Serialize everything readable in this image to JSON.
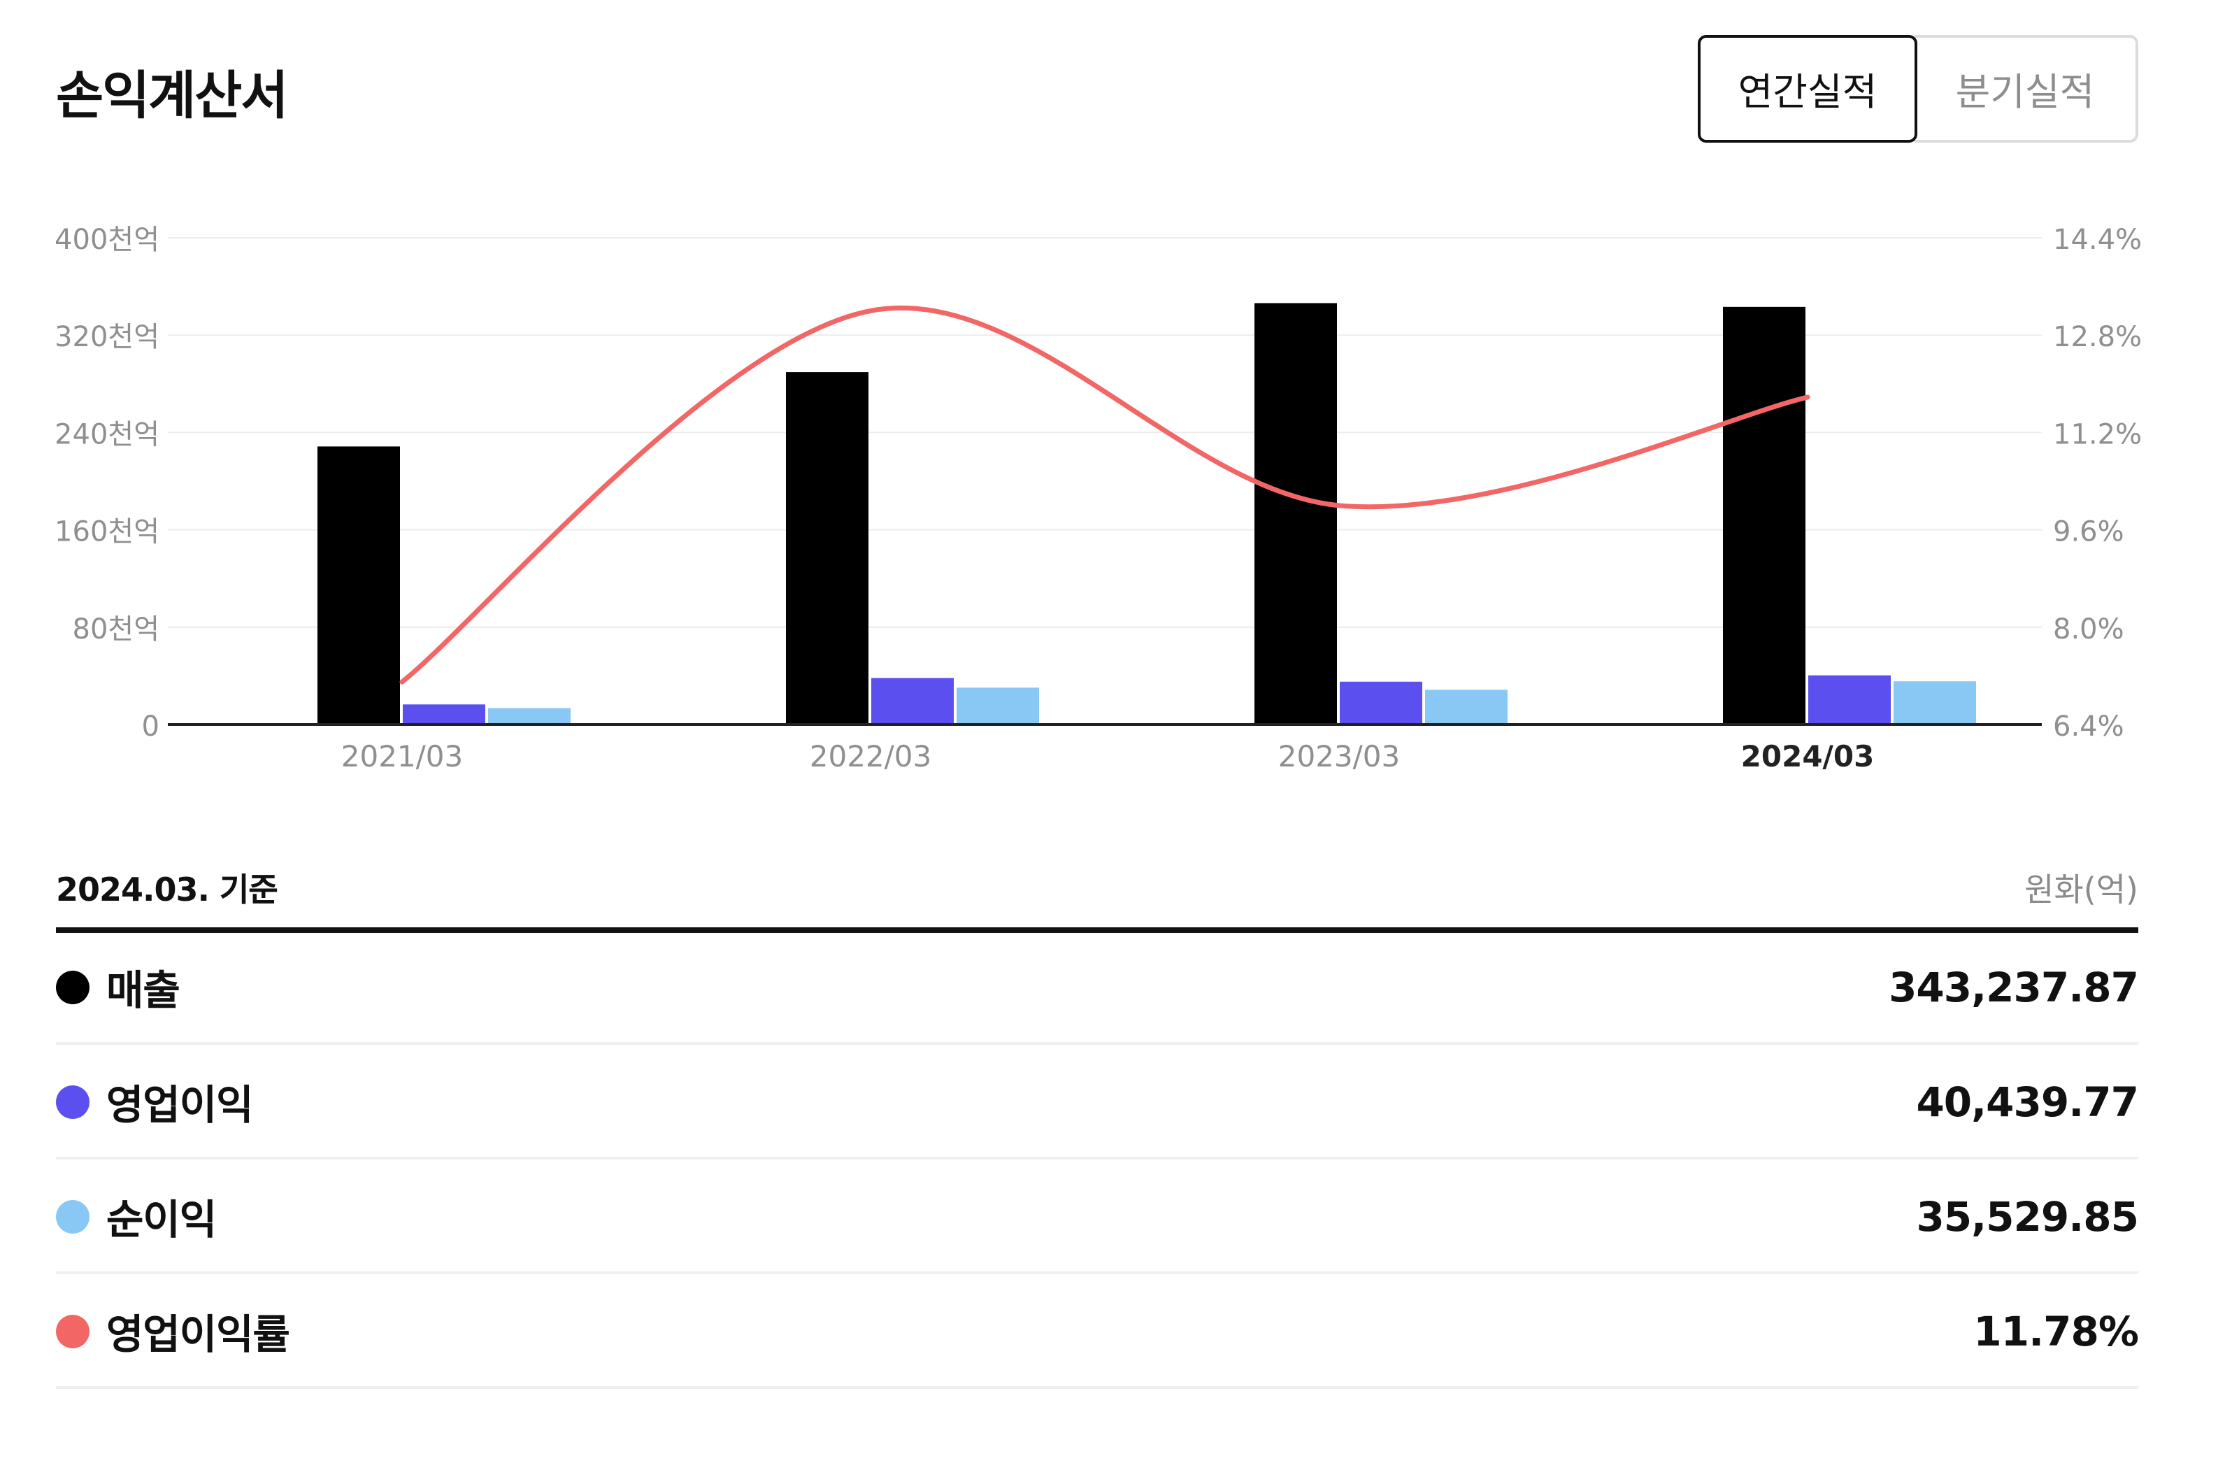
{
  "header": {
    "title": "손익계산서",
    "tabs": [
      {
        "label": "연간실적",
        "active": true
      },
      {
        "label": "분기실적",
        "active": false
      }
    ]
  },
  "chart_data": {
    "type": "bar",
    "categories": [
      "2021/03",
      "2022/03",
      "2023/03",
      "2024/03"
    ],
    "highlighted_category": "2024/03",
    "left_axis": {
      "ticks": [
        0,
        80,
        160,
        240,
        320,
        400
      ],
      "tick_labels": [
        "0",
        "80천억",
        "160천억",
        "240천억",
        "320천억",
        "400천억"
      ],
      "range": [
        0,
        400
      ]
    },
    "right_axis": {
      "ticks": [
        6.4,
        8.0,
        9.6,
        11.2,
        12.8,
        14.4
      ],
      "tick_labels": [
        "6.4%",
        "8.0%",
        "9.6%",
        "11.2%",
        "12.8%",
        "14.4%"
      ],
      "range": [
        6.4,
        14.4
      ]
    },
    "series": [
      {
        "name": "매출",
        "type": "bar",
        "axis": "left",
        "color": "#000000",
        "values": [
          228.5,
          289.6,
          346.3,
          343.2
        ]
      },
      {
        "name": "영업이익",
        "type": "bar",
        "axis": "left",
        "color": "#5b4ff0",
        "values": [
          16.5,
          38.2,
          35.2,
          40.4
        ]
      },
      {
        "name": "순이익",
        "type": "bar",
        "axis": "left",
        "color": "#89c8f5",
        "values": [
          13.5,
          30.3,
          28.5,
          35.5
        ]
      },
      {
        "name": "영업이익률",
        "type": "line",
        "axis": "right",
        "color": "#f26666",
        "values": [
          7.1,
          13.2,
          10.0,
          11.78
        ]
      }
    ],
    "grid": true,
    "legend": "table-below"
  },
  "table": {
    "basis": "2024.03. 기준",
    "unit": "원화(억)",
    "rows": [
      {
        "label": "매출",
        "value": "343,237.87",
        "color": "#000000"
      },
      {
        "label": "영업이익",
        "value": "40,439.77",
        "color": "#5b4ff0"
      },
      {
        "label": "순이익",
        "value": "35,529.85",
        "color": "#89c8f5"
      },
      {
        "label": "영업이익률",
        "value": "11.78%",
        "color": "#f26666"
      }
    ]
  }
}
